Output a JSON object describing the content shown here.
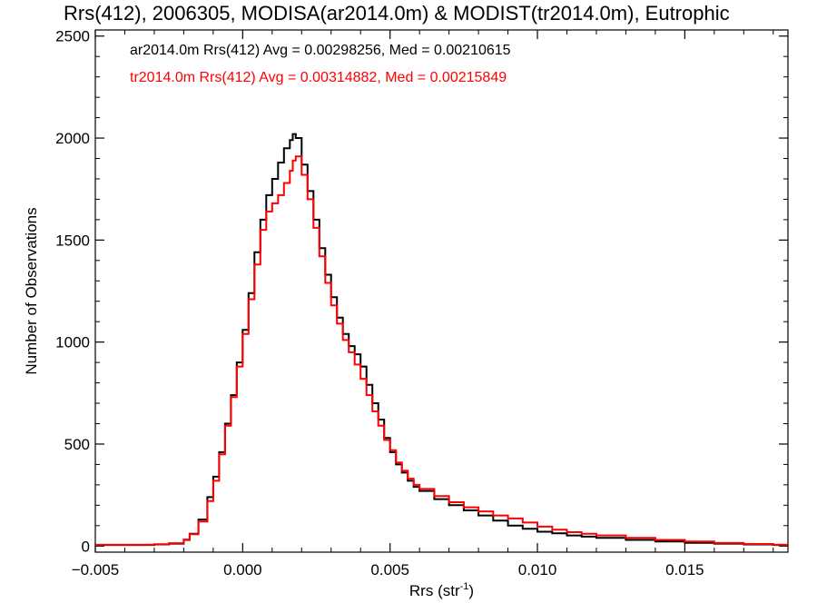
{
  "chart_data": {
    "type": "line",
    "title": "Rrs(412), 2006305, MODISA(ar2014.0m) & MODIST(tr2014.0m), Eutrophic",
    "xlabel_main": "Rrs (str",
    "xlabel_sup": "-1",
    "xlabel_end": ")",
    "ylabel": "Number of Observations",
    "xlim": [
      -0.005,
      0.0185
    ],
    "ylim": [
      -30,
      2530
    ],
    "xticks": [
      -0.005,
      0.0,
      0.005,
      0.01,
      0.015
    ],
    "xtick_labels": [
      "−0.005",
      "0.000",
      "0.005",
      "0.010",
      "0.015"
    ],
    "yticks": [
      0,
      500,
      1000,
      1500,
      2000,
      2500
    ],
    "ytick_labels": [
      "0",
      "500",
      "1000",
      "1500",
      "2000",
      "2500"
    ],
    "legend_position": "top-left",
    "grid": false,
    "series": [
      {
        "name": "ar2014.0m Rrs(412) Avg = 0.00298256, Med = 0.00210615",
        "color": "#000000",
        "points": [
          [
            -0.005,
            5
          ],
          [
            -0.004,
            5
          ],
          [
            -0.003,
            8
          ],
          [
            -0.0025,
            12
          ],
          [
            -0.002,
            30
          ],
          [
            -0.0018,
            60
          ],
          [
            -0.0015,
            130
          ],
          [
            -0.0012,
            240
          ],
          [
            -0.001,
            340
          ],
          [
            -0.0008,
            460
          ],
          [
            -0.0006,
            600
          ],
          [
            -0.0004,
            740
          ],
          [
            -0.0002,
            900
          ],
          [
            0.0,
            1060
          ],
          [
            0.0002,
            1240
          ],
          [
            0.0004,
            1440
          ],
          [
            0.0006,
            1600
          ],
          [
            0.0008,
            1720
          ],
          [
            0.001,
            1800
          ],
          [
            0.0012,
            1880
          ],
          [
            0.0014,
            1950
          ],
          [
            0.0016,
            1990
          ],
          [
            0.0017,
            2020
          ],
          [
            0.0018,
            2000
          ],
          [
            0.002,
            1870
          ],
          [
            0.0022,
            1740
          ],
          [
            0.0024,
            1600
          ],
          [
            0.0026,
            1460
          ],
          [
            0.0028,
            1330
          ],
          [
            0.003,
            1220
          ],
          [
            0.0032,
            1120
          ],
          [
            0.0034,
            1040
          ],
          [
            0.0036,
            980
          ],
          [
            0.0038,
            940
          ],
          [
            0.004,
            880
          ],
          [
            0.0042,
            790
          ],
          [
            0.0044,
            700
          ],
          [
            0.0046,
            620
          ],
          [
            0.0048,
            530
          ],
          [
            0.005,
            460
          ],
          [
            0.0052,
            400
          ],
          [
            0.0054,
            360
          ],
          [
            0.0056,
            320
          ],
          [
            0.0058,
            290
          ],
          [
            0.006,
            270
          ],
          [
            0.0065,
            230
          ],
          [
            0.007,
            200
          ],
          [
            0.0075,
            175
          ],
          [
            0.008,
            150
          ],
          [
            0.0085,
            125
          ],
          [
            0.009,
            100
          ],
          [
            0.0095,
            85
          ],
          [
            0.01,
            70
          ],
          [
            0.0105,
            62
          ],
          [
            0.011,
            52
          ],
          [
            0.0115,
            46
          ],
          [
            0.012,
            40
          ],
          [
            0.013,
            30
          ],
          [
            0.014,
            22
          ],
          [
            0.015,
            16
          ],
          [
            0.016,
            12
          ],
          [
            0.017,
            8
          ],
          [
            0.018,
            5
          ],
          [
            0.0185,
            4
          ]
        ]
      },
      {
        "name": "tr2014.0m Rrs(412) Avg = 0.00314882, Med = 0.00215849",
        "color": "#ff0000",
        "points": [
          [
            -0.005,
            6
          ],
          [
            -0.004,
            6
          ],
          [
            -0.003,
            9
          ],
          [
            -0.0025,
            14
          ],
          [
            -0.002,
            32
          ],
          [
            -0.0018,
            58
          ],
          [
            -0.0015,
            120
          ],
          [
            -0.0012,
            220
          ],
          [
            -0.001,
            320
          ],
          [
            -0.0008,
            450
          ],
          [
            -0.0006,
            590
          ],
          [
            -0.0004,
            730
          ],
          [
            -0.0002,
            880
          ],
          [
            0.0,
            1040
          ],
          [
            0.0002,
            1210
          ],
          [
            0.0004,
            1380
          ],
          [
            0.0006,
            1550
          ],
          [
            0.0008,
            1640
          ],
          [
            0.001,
            1680
          ],
          [
            0.0012,
            1720
          ],
          [
            0.0014,
            1780
          ],
          [
            0.0016,
            1840
          ],
          [
            0.0017,
            1890
          ],
          [
            0.0018,
            1910
          ],
          [
            0.002,
            1820
          ],
          [
            0.0022,
            1700
          ],
          [
            0.0024,
            1560
          ],
          [
            0.0026,
            1420
          ],
          [
            0.0028,
            1290
          ],
          [
            0.003,
            1180
          ],
          [
            0.0032,
            1090
          ],
          [
            0.0034,
            1010
          ],
          [
            0.0036,
            950
          ],
          [
            0.0038,
            890
          ],
          [
            0.004,
            820
          ],
          [
            0.0042,
            740
          ],
          [
            0.0044,
            660
          ],
          [
            0.0046,
            590
          ],
          [
            0.0048,
            520
          ],
          [
            0.005,
            470
          ],
          [
            0.0052,
            410
          ],
          [
            0.0054,
            370
          ],
          [
            0.0056,
            330
          ],
          [
            0.0058,
            300
          ],
          [
            0.006,
            280
          ],
          [
            0.0065,
            245
          ],
          [
            0.007,
            215
          ],
          [
            0.0075,
            190
          ],
          [
            0.008,
            170
          ],
          [
            0.0085,
            150
          ],
          [
            0.009,
            135
          ],
          [
            0.0095,
            115
          ],
          [
            0.01,
            95
          ],
          [
            0.0105,
            80
          ],
          [
            0.011,
            68
          ],
          [
            0.0115,
            60
          ],
          [
            0.012,
            52
          ],
          [
            0.013,
            40
          ],
          [
            0.014,
            30
          ],
          [
            0.015,
            22
          ],
          [
            0.016,
            15
          ],
          [
            0.017,
            10
          ],
          [
            0.018,
            6
          ],
          [
            0.0185,
            5
          ]
        ]
      }
    ]
  }
}
